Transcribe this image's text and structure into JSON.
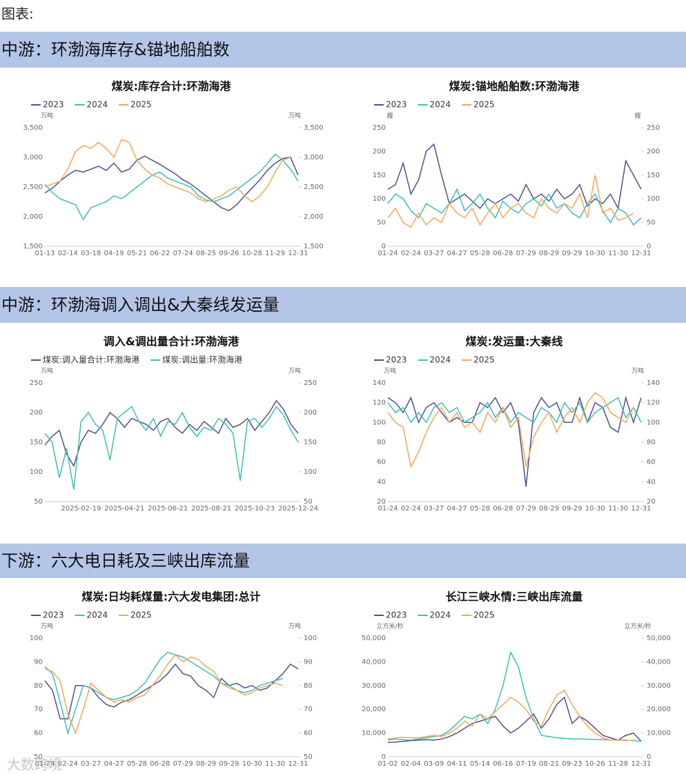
{
  "page_title": "图表:",
  "watermark": "大数跨境",
  "section_titles": [
    "中游：环渤海库存&锚地船舶数",
    "中游：环渤海调入调出&大秦线发运量",
    "下游：六大电日耗及三峡出库流量"
  ],
  "chart_data": [
    {
      "type": "line",
      "title": "煤炭:库存合计:环渤海港",
      "y_unit": "万吨",
      "categories": [
        "01-13",
        null,
        null,
        "02-14",
        null,
        null,
        "03-18",
        null,
        null,
        "04-19",
        null,
        null,
        "05-21",
        null,
        null,
        "06-22",
        null,
        null,
        "07-24",
        null,
        null,
        "08-25",
        null,
        null,
        "09-26",
        null,
        null,
        "10-28",
        null,
        null,
        "11-29",
        null,
        null,
        "12-31"
      ],
      "ylim": [
        1500,
        3500
      ],
      "yticks": [
        {
          "value": 1500,
          "label": "1,500"
        },
        {
          "value": 2000,
          "label": "2,000"
        },
        {
          "value": 2500,
          "label": "2,500"
        },
        {
          "value": 3000,
          "label": "3,000"
        },
        {
          "value": 3500,
          "label": "3,500"
        }
      ],
      "series": [
        {
          "name": "2023",
          "color": "#4e4f8f",
          "values": [
            2400,
            2480,
            2600,
            2700,
            2780,
            2750,
            2800,
            2850,
            2780,
            2900,
            2750,
            2800,
            2950,
            3020,
            2950,
            2880,
            2800,
            2720,
            2620,
            2550,
            2450,
            2350,
            2250,
            2150,
            2100,
            2200,
            2350,
            2480,
            2620,
            2780,
            2900,
            2980,
            3000,
            2700
          ]
        },
        {
          "name": "2024",
          "color": "#3fbdb4",
          "values": [
            2550,
            2400,
            2300,
            2250,
            2200,
            1950,
            2150,
            2200,
            2250,
            2350,
            2300,
            2400,
            2500,
            2600,
            2700,
            2750,
            2650,
            2600,
            2550,
            2500,
            2350,
            2280,
            2250,
            2300,
            2350,
            2450,
            2550,
            2650,
            2750,
            2900,
            3050,
            2950,
            2800,
            2600
          ]
        },
        {
          "name": "2025",
          "color": "#f0a858",
          "values": [
            2500,
            2550,
            2600,
            2800,
            3100,
            3200,
            3150,
            3250,
            3150,
            3000,
            3300,
            3250,
            2950,
            2800,
            2700,
            2650,
            2550,
            2500,
            2450,
            2400,
            2300,
            2250,
            2300,
            2350,
            2450,
            2500,
            2350,
            2250,
            2350,
            2500,
            2750,
            2950,
            3000,
            null
          ]
        }
      ]
    },
    {
      "type": "line",
      "title": "煤炭:锚地船舶数:环渤海港",
      "y_unit": "艘",
      "categories": [
        "01-24",
        null,
        null,
        "02-24",
        null,
        null,
        "03-27",
        null,
        null,
        "04-27",
        null,
        null,
        "05-28",
        null,
        null,
        "06-28",
        null,
        null,
        "07-29",
        null,
        null,
        "08-29",
        null,
        null,
        "09-29",
        null,
        null,
        "10-30",
        null,
        null,
        "11-30",
        null,
        null,
        "12-31"
      ],
      "ylim": [
        0,
        250
      ],
      "yticks": [
        0,
        50,
        100,
        150,
        200,
        250
      ],
      "series": [
        {
          "name": "2023",
          "color": "#4e4f8f",
          "values": [
            120,
            130,
            175,
            110,
            140,
            200,
            215,
            150,
            90,
            100,
            110,
            95,
            80,
            100,
            90,
            100,
            110,
            95,
            130,
            100,
            110,
            95,
            120,
            100,
            110,
            130,
            85,
            100,
            90,
            110,
            80,
            180,
            150,
            120
          ]
        },
        {
          "name": "2024",
          "color": "#3fbdb4",
          "values": [
            90,
            110,
            100,
            75,
            60,
            90,
            80,
            70,
            90,
            120,
            75,
            90,
            110,
            80,
            60,
            95,
            80,
            70,
            90,
            100,
            85,
            110,
            80,
            90,
            70,
            60,
            90,
            110,
            75,
            50,
            80,
            70,
            45,
            60
          ]
        },
        {
          "name": "2025",
          "color": "#f0a858",
          "values": [
            60,
            80,
            50,
            40,
            70,
            45,
            60,
            50,
            90,
            70,
            60,
            80,
            45,
            70,
            90,
            60,
            80,
            90,
            70,
            60,
            100,
            80,
            70,
            90,
            80,
            110,
            60,
            150,
            70,
            80,
            55,
            60,
            70,
            null
          ]
        }
      ]
    },
    {
      "type": "line",
      "title": "调入&调出量合计:环渤海港",
      "y_unit": "万吨",
      "categories": [
        null,
        null,
        null,
        null,
        null,
        "2025-02-19",
        null,
        null,
        null,
        null,
        null,
        "2025-04-21",
        null,
        null,
        null,
        null,
        null,
        "2025-06-21",
        null,
        null,
        null,
        null,
        null,
        "2025-08-21",
        null,
        null,
        null,
        null,
        null,
        "2025-10-23",
        null,
        null,
        null,
        null,
        null,
        "2025-12-24"
      ],
      "ylim": [
        50,
        250
      ],
      "yticks": [
        50,
        100,
        150,
        200,
        250
      ],
      "series": [
        {
          "name": "煤炭:调入量合计:环渤海港",
          "color": "#4e4f8f",
          "values": [
            145,
            160,
            170,
            130,
            110,
            150,
            170,
            165,
            180,
            200,
            190,
            175,
            190,
            185,
            180,
            170,
            185,
            190,
            175,
            165,
            180,
            170,
            185,
            175,
            165,
            190,
            175,
            180,
            190,
            170,
            185,
            200,
            220,
            205,
            180,
            165
          ]
        },
        {
          "name": "煤炭:调出量:环渤海港",
          "color": "#3fbdb4",
          "values": [
            165,
            150,
            90,
            140,
            70,
            185,
            200,
            180,
            170,
            120,
            190,
            200,
            210,
            185,
            170,
            190,
            160,
            185,
            180,
            200,
            175,
            160,
            175,
            170,
            190,
            180,
            165,
            85,
            185,
            190,
            175,
            190,
            210,
            195,
            170,
            150
          ]
        }
      ]
    },
    {
      "type": "line",
      "title": "煤炭:发运量:大秦线",
      "y_unit": "万吨",
      "categories": [
        "01-24",
        null,
        null,
        "02-24",
        null,
        null,
        "03-27",
        null,
        null,
        "04-27",
        null,
        null,
        "05-28",
        null,
        null,
        "06-28",
        null,
        null,
        "07-29",
        null,
        null,
        "08-29",
        null,
        null,
        "09-29",
        null,
        null,
        "10-30",
        null,
        null,
        "11-30",
        null,
        null,
        "12-31"
      ],
      "ylim": [
        20,
        140
      ],
      "yticks": [
        20,
        40,
        60,
        80,
        100,
        120,
        140
      ],
      "series": [
        {
          "name": "2023",
          "color": "#4e4f8f",
          "values": [
            125,
            120,
            110,
            125,
            100,
            115,
            120,
            110,
            100,
            105,
            100,
            100,
            120,
            115,
            125,
            110,
            120,
            100,
            35,
            110,
            125,
            115,
            120,
            100,
            100,
            125,
            100,
            120,
            115,
            95,
            90,
            125,
            100,
            125
          ]
        },
        {
          "name": "2024",
          "color": "#3fbdb4",
          "values": [
            120,
            110,
            115,
            100,
            110,
            100,
            115,
            120,
            110,
            115,
            100,
            105,
            110,
            120,
            105,
            115,
            100,
            110,
            105,
            100,
            115,
            110,
            100,
            120,
            110,
            120,
            100,
            110,
            115,
            120,
            125,
            105,
            115,
            100
          ]
        },
        {
          "name": "2025",
          "color": "#f0a858",
          "values": [
            110,
            100,
            95,
            55,
            70,
            90,
            105,
            115,
            100,
            110,
            95,
            100,
            90,
            110,
            100,
            115,
            95,
            105,
            55,
            85,
            100,
            110,
            90,
            105,
            115,
            100,
            120,
            130,
            125,
            110,
            105,
            100,
            115,
            null
          ]
        }
      ]
    },
    {
      "type": "line",
      "title": "煤炭:日均耗煤量:六大发电集团:总计",
      "y_unit": "万吨",
      "categories": [
        "01-24",
        null,
        null,
        "02-24",
        null,
        null,
        "03-27",
        null,
        null,
        "04-27",
        null,
        null,
        "05-28",
        null,
        null,
        "06-28",
        null,
        null,
        "07-29",
        null,
        null,
        "08-29",
        null,
        null,
        "09-29",
        null,
        null,
        "10-30",
        null,
        null,
        "11-30",
        null,
        null,
        "12-31"
      ],
      "ylim": [
        50,
        100
      ],
      "yticks": [
        50,
        60,
        70,
        80,
        90,
        100
      ],
      "series": [
        {
          "name": "2023",
          "color": "#4e4f8f",
          "values": [
            82,
            78,
            66,
            66,
            80,
            80,
            79,
            75,
            72,
            71,
            73,
            74,
            76,
            78,
            80,
            82,
            85,
            89,
            85,
            84,
            80,
            78,
            75,
            83,
            80,
            81,
            79,
            80,
            78,
            79,
            82,
            85,
            89,
            87
          ]
        },
        {
          "name": "2024",
          "color": "#3fbdb4",
          "values": [
            88,
            85,
            73,
            60,
            70,
            80,
            79,
            77,
            75,
            74,
            75,
            76,
            78,
            81,
            86,
            91,
            94,
            93,
            92,
            90,
            88,
            86,
            84,
            81,
            80,
            78,
            77,
            78,
            80,
            81,
            82,
            83,
            null,
            null
          ]
        },
        {
          "name": "2025",
          "color": "#f0a858",
          "values": [
            87,
            86,
            82,
            68,
            60,
            70,
            81,
            78,
            75,
            73,
            74,
            73,
            75,
            76,
            80,
            84,
            89,
            93,
            90,
            92,
            91,
            88,
            86,
            81,
            79,
            78,
            76,
            77,
            79,
            80,
            81,
            80,
            null,
            null
          ]
        }
      ]
    },
    {
      "type": "line",
      "title": "长江三峡水情:三峡出库流量",
      "y_unit": "立方米/秒",
      "categories": [
        "01-02",
        null,
        null,
        "02-04",
        null,
        null,
        "03-09",
        null,
        null,
        "04-11",
        null,
        null,
        "05-14",
        null,
        null,
        "06-16",
        null,
        null,
        "07-19",
        null,
        null,
        "08-21",
        null,
        null,
        "09-23",
        null,
        null,
        "10-26",
        null,
        null,
        "11-28",
        null,
        null,
        "12-31"
      ],
      "ylim": [
        0,
        50000
      ],
      "yticks": [
        0,
        {
          "value": 10000,
          "label": "10,000"
        },
        {
          "value": 20000,
          "label": "20,000"
        },
        {
          "value": 30000,
          "label": "30,000"
        },
        {
          "value": 40000,
          "label": "40,000"
        },
        {
          "value": 50000,
          "label": "50,000"
        }
      ],
      "series": [
        {
          "name": "2023",
          "color": "#4e4f8f",
          "values": [
            6000,
            6200,
            6500,
            6800,
            7000,
            7200,
            7000,
            7500,
            8500,
            10000,
            12000,
            14000,
            15000,
            16000,
            17000,
            13000,
            10000,
            12000,
            15000,
            18000,
            12000,
            16000,
            22000,
            25000,
            14000,
            17000,
            15000,
            12000,
            9000,
            8000,
            7000,
            9000,
            10000,
            6500
          ]
        },
        {
          "name": "2024",
          "color": "#3fbdb4",
          "values": [
            7000,
            7500,
            7200,
            7000,
            7500,
            8000,
            8500,
            9000,
            11000,
            14000,
            17000,
            16000,
            18000,
            14000,
            20000,
            30000,
            44000,
            38000,
            25000,
            16000,
            9000,
            8500,
            8000,
            7800,
            7500,
            7500,
            7400,
            7300,
            7200,
            7100,
            7000,
            7000,
            6800,
            6500
          ]
        },
        {
          "name": "2025",
          "color": "#f0a858",
          "values": [
            7500,
            8000,
            8200,
            8000,
            8000,
            8500,
            9000,
            8500,
            10000,
            12000,
            15000,
            13000,
            18000,
            16000,
            19000,
            22000,
            25000,
            23000,
            20000,
            15000,
            13000,
            20000,
            26000,
            28000,
            22000,
            17000,
            13000,
            10000,
            8000,
            7000,
            7000,
            6800,
            7000,
            null
          ]
        }
      ]
    }
  ]
}
